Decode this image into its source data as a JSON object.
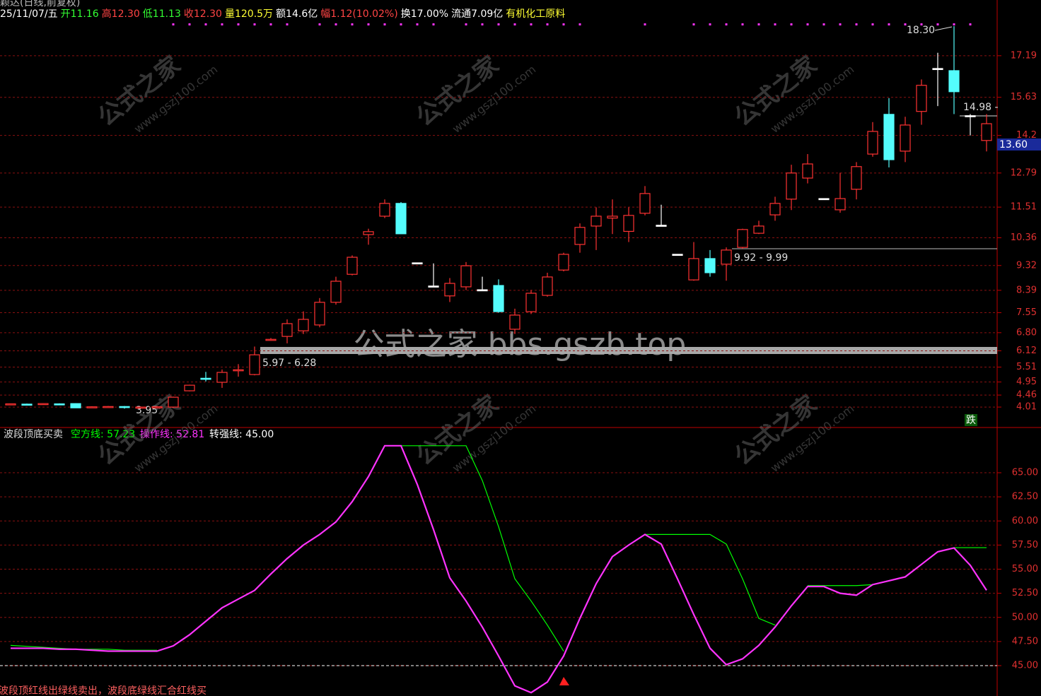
{
  "chart_data": [
    {
      "type": "candlestick",
      "title": "颖达(日线,前复权)",
      "header": [
        {
          "text": "25/11/07/五",
          "color": "#ffffff"
        },
        {
          "text": "开11.16",
          "color": "#33ff33"
        },
        {
          "text": "高12.30",
          "color": "#ff4444"
        },
        {
          "text": "低11.13",
          "color": "#33ff33"
        },
        {
          "text": "收12.30",
          "color": "#ff4444"
        },
        {
          "text": "量120.5万",
          "color": "#ffff33"
        },
        {
          "text": "额14.6亿",
          "color": "#ffffff"
        },
        {
          "text": "幅1.12(10.02%)",
          "color": "#ff4444"
        },
        {
          "text": "换17.00%",
          "color": "#ffffff"
        },
        {
          "text": "流通7.09亿",
          "color": "#ffffff"
        },
        {
          "text": "有机化工原料",
          "color": "#ffff33"
        }
      ],
      "open": [
        4.1,
        4.12,
        4.12,
        4.13,
        4.14,
        4.0,
        4.01,
        4.03,
        4.0,
        4.01,
        4.01,
        4.62,
        5.09,
        4.94,
        5.37,
        5.23,
        6.52,
        6.66,
        6.87,
        7.09,
        7.94,
        8.99,
        10.48,
        11.17,
        11.65,
        9.42,
        8.55,
        8.18,
        8.52,
        8.41,
        8.57,
        6.93,
        7.59,
        8.2,
        9.15,
        10.11,
        10.8,
        11.1,
        10.6,
        11.28,
        10.83,
        9.74,
        8.78,
        9.58,
        9.37,
        10.0,
        10.53,
        11.22,
        11.81,
        12.6,
        11.83,
        11.41,
        12.18,
        13.5,
        14.99,
        13.61,
        15.1,
        16.71,
        16.63,
        14.94,
        14.01
      ],
      "high": [
        4.14,
        4.14,
        4.15,
        4.15,
        4.15,
        4.04,
        4.05,
        4.05,
        4.03,
        4.05,
        4.4,
        4.85,
        5.33,
        5.42,
        5.62,
        6.28,
        6.6,
        7.3,
        7.6,
        8.1,
        8.9,
        9.7,
        10.7,
        11.8,
        11.7,
        9.42,
        9.4,
        8.85,
        9.45,
        8.9,
        8.8,
        7.7,
        8.4,
        9.05,
        9.8,
        10.9,
        11.5,
        11.8,
        11.5,
        12.3,
        11.6,
        9.74,
        10.2,
        9.9,
        10.0,
        10.7,
        11.0,
        11.9,
        13.1,
        13.5,
        11.83,
        12.8,
        13.2,
        14.7,
        15.6,
        14.9,
        16.3,
        17.3,
        18.3,
        15.0,
        15.0
      ],
      "low": [
        4.1,
        4.1,
        4.11,
        4.11,
        3.98,
        4.0,
        4.0,
        3.95,
        3.99,
        4.0,
        3.98,
        4.6,
        4.97,
        4.73,
        5.15,
        5.2,
        6.5,
        6.4,
        6.75,
        7.0,
        7.85,
        8.95,
        10.1,
        11.1,
        10.5,
        9.42,
        8.54,
        7.95,
        8.4,
        8.4,
        7.55,
        6.75,
        7.5,
        8.15,
        9.1,
        9.8,
        9.9,
        10.5,
        10.2,
        11.2,
        10.8,
        9.74,
        8.75,
        8.9,
        8.75,
        9.95,
        10.5,
        11.0,
        11.4,
        12.4,
        11.83,
        11.3,
        11.8,
        13.4,
        13.0,
        13.2,
        14.6,
        15.3,
        15.0,
        14.2,
        13.6
      ],
      "close": [
        4.13,
        4.11,
        4.14,
        4.12,
        3.98,
        4.02,
        4.03,
        4.0,
        4.01,
        4.02,
        4.38,
        4.83,
        5.05,
        5.31,
        5.41,
        5.97,
        6.55,
        7.14,
        7.3,
        7.94,
        8.73,
        9.63,
        10.59,
        11.65,
        10.51,
        9.42,
        8.55,
        8.65,
        9.31,
        8.41,
        7.59,
        7.46,
        8.28,
        8.89,
        9.74,
        10.75,
        11.17,
        11.17,
        11.2,
        12.02,
        10.83,
        9.74,
        9.58,
        9.05,
        9.9,
        10.67,
        10.8,
        11.65,
        12.79,
        13.13,
        11.83,
        11.83,
        13.03,
        14.35,
        13.29,
        14.59,
        16.08,
        16.71,
        15.84,
        14.94,
        14.64
      ],
      "up_color": "#ff3232",
      "down_color": "#54fcfc",
      "flat_color": "#ffffff",
      "ylim": [
        3.27,
        19.28
      ],
      "yticks": [
        4.01,
        4.46,
        4.95,
        5.51,
        6.12,
        {
          "value": 6.8,
          "label": "6.80"
        },
        7.55,
        8.39,
        9.32,
        10.36,
        11.51,
        12.79,
        14.2,
        15.63,
        17.19
      ],
      "grid": true,
      "last_price": 13.6,
      "last_price_label": "13.60",
      "annotations": [
        "18.30",
        "14.98 -",
        "9.92 - 9.99",
        "5.97 - 6.28",
        "3.95"
      ],
      "signal_text": "跌"
    },
    {
      "type": "line",
      "title": "波段顶底买卖",
      "series": [
        {
          "name": "空方线: 57.23",
          "color": "#00ff00",
          "values": [
            47.1,
            47.0,
            46.9,
            46.8,
            46.7,
            46.7,
            46.7,
            46.6,
            46.6,
            46.6,
            null,
            null,
            null,
            null,
            null,
            null,
            null,
            null,
            null,
            null,
            null,
            null,
            null,
            null,
            67.8,
            67.8,
            67.8,
            67.8,
            67.8,
            64.2,
            59.4,
            54.0,
            51.7,
            49.2,
            46.5,
            null,
            null,
            null,
            null,
            58.6,
            58.6,
            58.6,
            58.6,
            58.6,
            57.6,
            54.0,
            49.9,
            49.2,
            null,
            53.3,
            53.3,
            53.3,
            53.3,
            53.4,
            null,
            null,
            null,
            null,
            57.23,
            57.23,
            57.23
          ]
        },
        {
          "name": "操作线: 52.81",
          "color": "#ff33ff",
          "values": [
            46.8,
            46.8,
            46.8,
            46.7,
            46.7,
            46.6,
            46.5,
            46.5,
            46.5,
            46.5,
            47.05,
            48.2,
            49.6,
            51.0,
            51.9,
            52.8,
            54.5,
            56.1,
            57.5,
            58.6,
            59.9,
            62.0,
            64.6,
            67.8,
            67.8,
            63.8,
            59.1,
            54.1,
            51.7,
            49.0,
            46.0,
            42.9,
            42.2,
            43.3,
            46.0,
            49.9,
            53.5,
            56.3,
            57.5,
            58.6,
            57.6,
            54.0,
            50.3,
            46.8,
            45.1,
            45.7,
            47.1,
            49.0,
            51.2,
            53.2,
            53.2,
            52.5,
            52.3,
            53.4,
            53.8,
            54.2,
            55.5,
            56.8,
            57.2,
            55.4,
            52.81
          ]
        },
        {
          "name": "转强线: 45.00",
          "color": "#ffffff",
          "level": 45,
          "dashed": true
        }
      ],
      "ylim": [
        41.85,
        69.69
      ],
      "yticks": [
        {
          "value": 45,
          "label": "45.00"
        },
        {
          "value": 47.5,
          "label": "47.50"
        },
        {
          "value": 50,
          "label": "50.00"
        },
        {
          "value": 52.5,
          "label": "52.50"
        },
        {
          "value": 55,
          "label": "55.00"
        },
        {
          "value": 57.5,
          "label": "57.50"
        },
        {
          "value": 60,
          "label": "60.00"
        },
        {
          "value": 62.5,
          "label": "62.50"
        },
        {
          "value": 65,
          "label": "65.00"
        }
      ],
      "grid": true,
      "note": "波段顶红线出绿线卖出，波段底绿线汇合红线买"
    }
  ],
  "watermark": [
    "公式之家",
    "www.gszj100.com"
  ],
  "banner": "公式之家 bbs.gszb.top"
}
